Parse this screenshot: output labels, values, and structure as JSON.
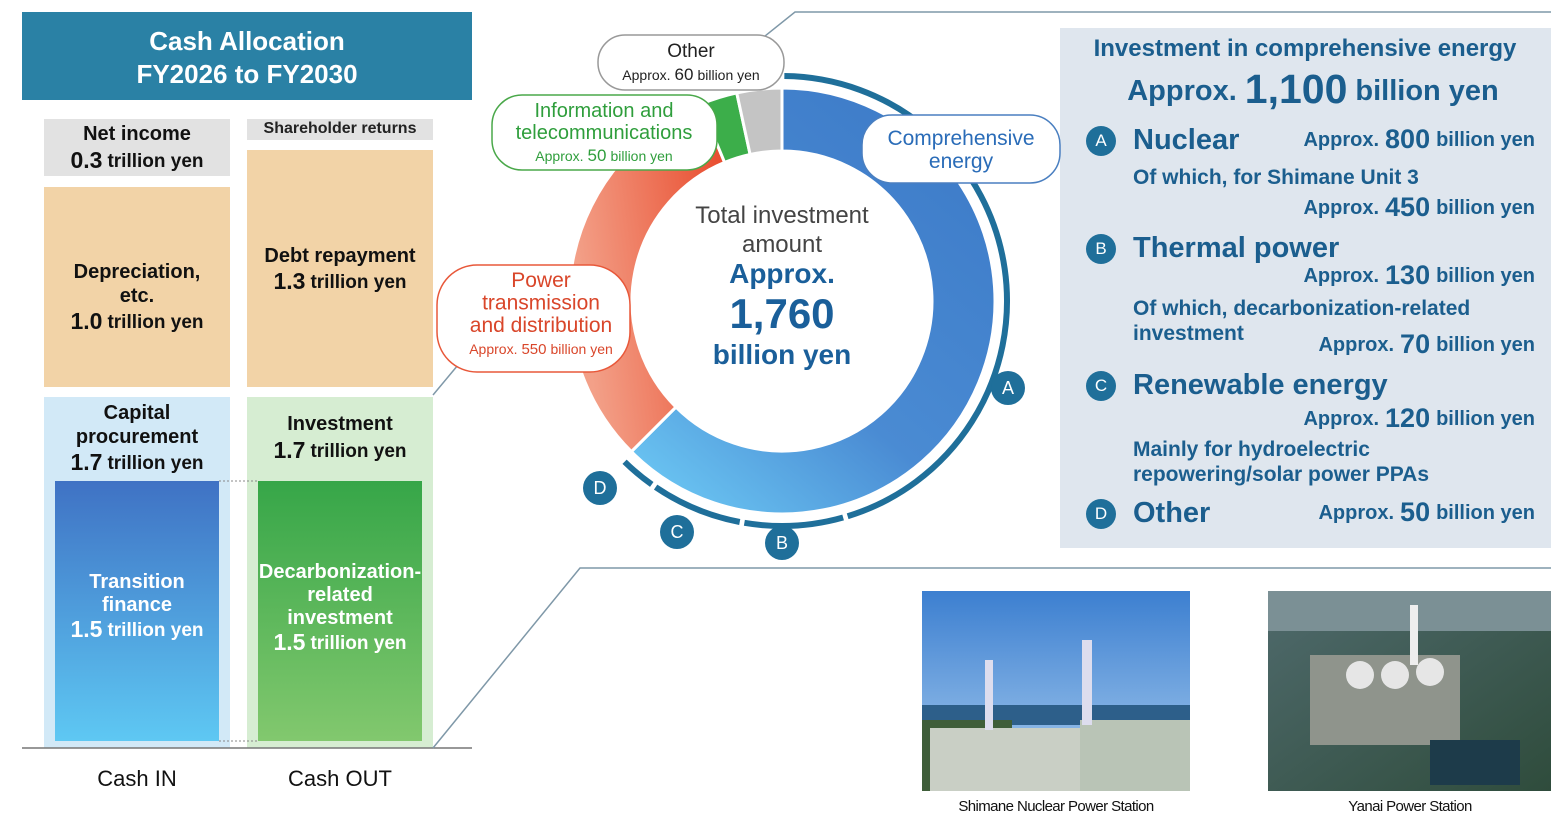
{
  "cash_allocation": {
    "title": [
      "Cash Allocation",
      "FY2026 to FY2030"
    ],
    "net_income": {
      "name": [
        "Net income"
      ],
      "amount": "0.3",
      "unit": "trillion yen"
    },
    "shareholder_returns": "Shareholder returns",
    "depreciation": {
      "name": [
        "Depreciation,",
        "etc."
      ],
      "amount": "1.0",
      "unit": "trillion yen"
    },
    "debt_repayment": {
      "name": [
        "Debt repayment"
      ],
      "amount": "1.3",
      "unit": "trillion yen"
    },
    "capital_procurement": {
      "name": [
        "Capital",
        "procurement"
      ],
      "amount": "1.7",
      "unit": "trillion yen"
    },
    "investment": {
      "name": [
        "Investment"
      ],
      "amount": "1.7",
      "unit": "trillion yen"
    },
    "transition_finance": {
      "name": [
        "Transition",
        "finance"
      ],
      "amount": "1.5",
      "unit": "trillion yen"
    },
    "decarbonization_investment": {
      "name": [
        "Decarbonization-",
        "related",
        "investment"
      ],
      "amount": "1.5",
      "unit": "trillion yen"
    },
    "cash_in": "Cash IN",
    "cash_out": "Cash OUT"
  },
  "donut": {
    "center": [
      "Total investment",
      "amount"
    ],
    "total_prefix": "Approx.",
    "total": {
      "value": 1760,
      "label": "1,760"
    },
    "total_unit": "billion yen",
    "segments": [
      {
        "name": [
          "Comprehensive",
          "energy"
        ],
        "value": 1100,
        "value_label": "1,100",
        "color": "#3f7fcb"
      },
      {
        "name": [
          "Power",
          "transmission",
          "and distribution"
        ],
        "prefix": "Approx.",
        "value": 550,
        "unit": "billion yen",
        "color": "#e8502f"
      },
      {
        "name": [
          "Information and",
          "telecommunications"
        ],
        "prefix": "Approx.",
        "value": 50,
        "unit": "billion yen",
        "color": "#3cae4a"
      },
      {
        "name": [
          "Other"
        ],
        "prefix": "Approx.",
        "value": 60,
        "unit": "billion yen",
        "color": "#c4c4c4"
      }
    ]
  },
  "breakdown": {
    "title": "Investment in comprehensive energy",
    "total_prefix": "Approx.",
    "total_unit": "billion yen",
    "arc_color": "#1f6f9a",
    "items": [
      {
        "letter": "A",
        "name": "Nuclear",
        "prefix": "Approx.",
        "value": 800,
        "unit": "billion yen",
        "note": [
          "Of which, for Shimane Unit 3"
        ],
        "note_prefix": "Approx.",
        "note_value": 450,
        "note_unit": "billion yen"
      },
      {
        "letter": "B",
        "name": "Thermal power",
        "prefix": "Approx.",
        "value": 130,
        "unit": "billion yen",
        "note": [
          "Of which, decarbonization-related",
          "investment"
        ],
        "note_prefix": "Approx.",
        "note_value": 70,
        "note_unit": "billion yen"
      },
      {
        "letter": "C",
        "name": "Renewable energy",
        "prefix": "Approx.",
        "value": 120,
        "unit": "billion yen",
        "note": [
          "Mainly for hydroelectric",
          "repowering/solar power PPAs"
        ]
      },
      {
        "letter": "D",
        "name": "Other",
        "prefix": "Approx.",
        "value": 50,
        "unit": "billion yen"
      }
    ]
  },
  "photos": [
    {
      "caption": "Shimane Nuclear Power Station"
    },
    {
      "caption": "Yanai Power Station"
    }
  ]
}
